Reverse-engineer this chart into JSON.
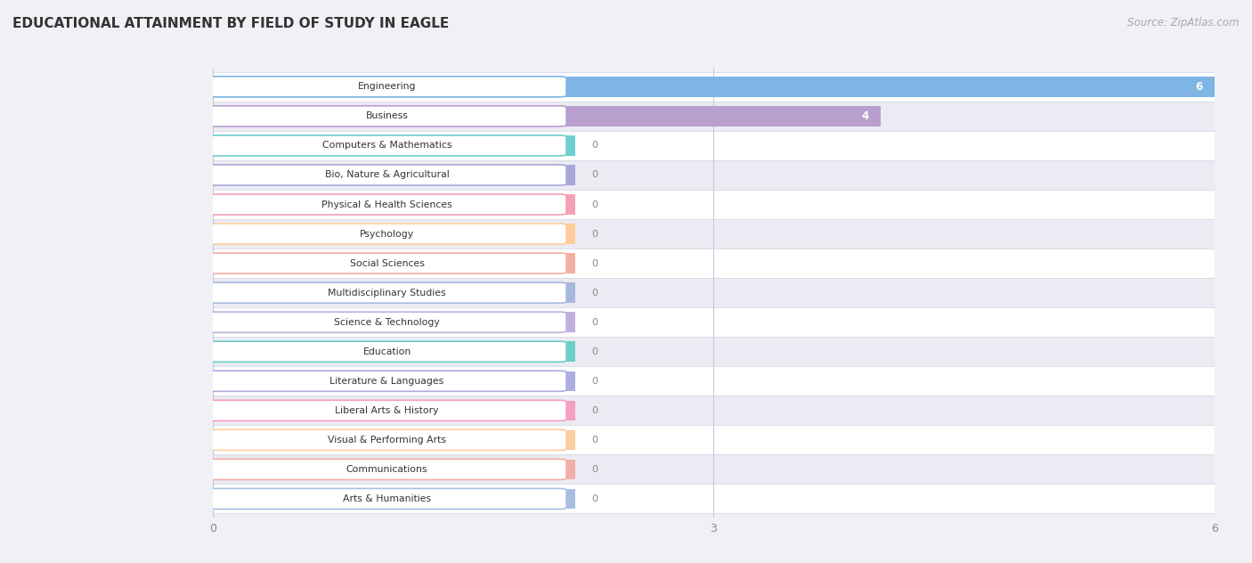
{
  "title": "EDUCATIONAL ATTAINMENT BY FIELD OF STUDY IN EAGLE",
  "source": "Source: ZipAtlas.com",
  "categories": [
    "Engineering",
    "Business",
    "Computers & Mathematics",
    "Bio, Nature & Agricultural",
    "Physical & Health Sciences",
    "Psychology",
    "Social Sciences",
    "Multidisciplinary Studies",
    "Science & Technology",
    "Education",
    "Literature & Languages",
    "Liberal Arts & History",
    "Visual & Performing Arts",
    "Communications",
    "Arts & Humanities"
  ],
  "values": [
    6,
    4,
    0,
    0,
    0,
    0,
    0,
    0,
    0,
    0,
    0,
    0,
    0,
    0,
    0
  ],
  "bar_colors": [
    "#7EB5E5",
    "#B89FCE",
    "#6ECECE",
    "#A8A8D8",
    "#F4A0B5",
    "#FDCC9A",
    "#F4AFA0",
    "#A8B8DC",
    "#C0AEDD",
    "#6ECEC8",
    "#AAAEE0",
    "#F4A0C0",
    "#FDCCA0",
    "#F4AEA8",
    "#A8C0E0"
  ],
  "xlim": [
    0,
    6
  ],
  "xticks": [
    0,
    3,
    6
  ],
  "background_color": "#f0f0f5",
  "row_bg_light": "#ffffff",
  "row_bg_dark": "#ebebf3"
}
